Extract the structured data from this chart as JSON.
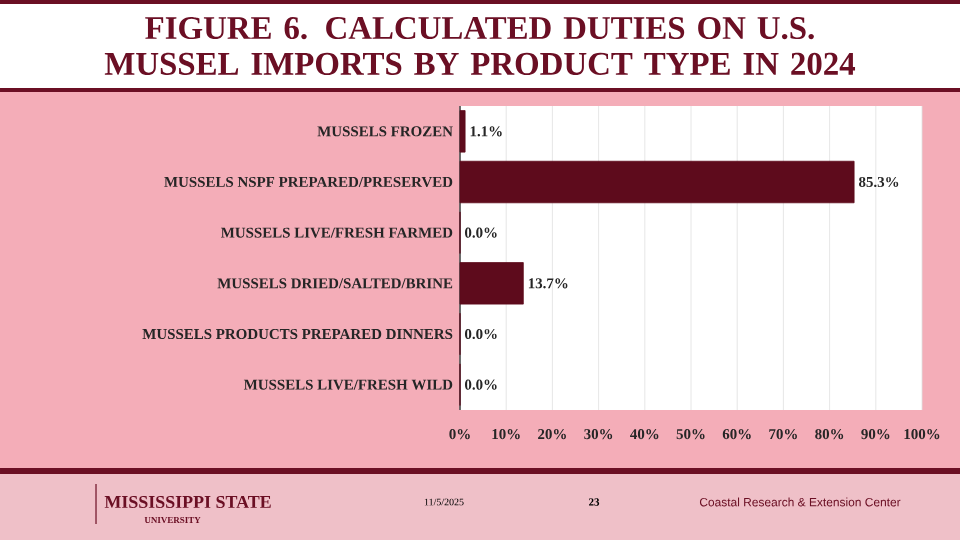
{
  "chart_data": {
    "type": "bar",
    "orientation": "horizontal",
    "title": "FIGURE 6. CALCULATED DUTIES ON U.S. MUSSEL IMPORTS BY PRODUCT TYPE IN 2024",
    "categories": [
      "MUSSELS FROZEN",
      "MUSSELS NSPF PREPARED/PRESERVED",
      "MUSSELS LIVE/FRESH FARMED",
      "MUSSELS DRIED/SALTED/BRINE",
      "MUSSELS PRODUCTS PREPARED DINNERS",
      "MUSSELS LIVE/FRESH WILD"
    ],
    "values": [
      1.1,
      85.3,
      0.0,
      13.7,
      0.0,
      0.0
    ],
    "value_labels": [
      "1.1%",
      "85.3%",
      "0.0%",
      "13.7%",
      "0.0%",
      "0.0%"
    ],
    "color": "#5e0b1c",
    "xlim": [
      0,
      100
    ],
    "xticks": [
      {
        "value": 0,
        "label": "0%"
      },
      {
        "value": 10,
        "label": "10%"
      },
      {
        "value": 20,
        "label": "20%"
      },
      {
        "value": 30,
        "label": "30%"
      },
      {
        "value": 40,
        "label": "40%"
      },
      {
        "value": 50,
        "label": "50%"
      },
      {
        "value": 60,
        "label": "60%"
      },
      {
        "value": 70,
        "label": "70%"
      },
      {
        "value": 80,
        "label": "80%"
      },
      {
        "value": 90,
        "label": "90%"
      },
      {
        "value": 100,
        "label": "100%"
      }
    ],
    "grid": "x",
    "annotations": [
      "MISSISSIPPI STATE",
      "UNIVERSITY",
      "11/5/2025",
      "23",
      "Coastal Research & Extension Center"
    ]
  }
}
